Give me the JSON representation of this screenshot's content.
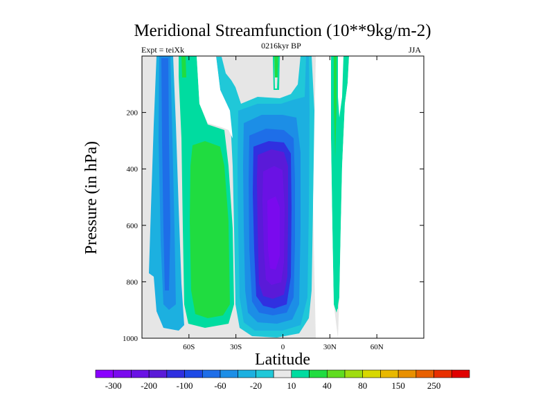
{
  "chart_data": {
    "type": "heatmap",
    "title": "Meridional Streamfunction (10**9kg/m-2)",
    "left_label": "Expt = teiXk",
    "center_label": "0216kyr BP",
    "right_label": "JJA",
    "xlabel": "Latitude",
    "ylabel": "Pressure (in hPa)",
    "xlim": [
      -90,
      90
    ],
    "ylim": [
      1000,
      0
    ],
    "x_ticks": [
      -60,
      -30,
      0,
      30,
      60
    ],
    "x_tick_labels": [
      "60S",
      "30S",
      "0",
      "30N",
      "60N"
    ],
    "y_ticks": [
      200,
      400,
      600,
      800,
      1000
    ],
    "y_tick_labels": [
      "200",
      "400",
      "600",
      "800",
      "1000"
    ],
    "colorbar": {
      "levels": [
        -300,
        -250,
        -200,
        -150,
        -100,
        -80,
        -60,
        -40,
        -20,
        -10,
        10,
        20,
        40,
        60,
        80,
        100,
        150,
        200,
        250,
        300
      ],
      "labels": [
        "-300",
        "-200",
        "-100",
        "-60",
        "-20",
        "10",
        "40",
        "80",
        "150",
        "250"
      ],
      "colors": [
        "#8a00ff",
        "#7a0aee",
        "#6a12e4",
        "#5a1ad8",
        "#3030e0",
        "#1e4ae6",
        "#1e6ee8",
        "#1c8ee6",
        "#1cb0e0",
        "#20c8d8",
        "#e8e8e8",
        "#00dca0",
        "#20dc40",
        "#60dc20",
        "#a0dc10",
        "#d8d800",
        "#e8b800",
        "#e89000",
        "#e86000",
        "#e83000",
        "#e00000"
      ]
    },
    "regions": [
      {
        "name": "sh-high-lat-cell",
        "level_range": [
          -60,
          -20
        ],
        "lat_range": [
          -80,
          -68
        ],
        "p_range": [
          0,
          960
        ]
      },
      {
        "name": "sh-mid-lat-cell",
        "level_range": [
          20,
          40
        ],
        "lat_range": [
          -62,
          -30
        ],
        "p_range": [
          0,
          980
        ]
      },
      {
        "name": "tropical-cell",
        "level_range": [
          -300,
          -200
        ],
        "lat_range": [
          -30,
          12
        ],
        "p_range": [
          140,
          1000
        ]
      },
      {
        "name": "nh-subtropical-cell",
        "level_range": [
          10,
          40
        ],
        "lat_range": [
          28,
          40
        ],
        "p_range": [
          0,
          630
        ]
      }
    ]
  }
}
